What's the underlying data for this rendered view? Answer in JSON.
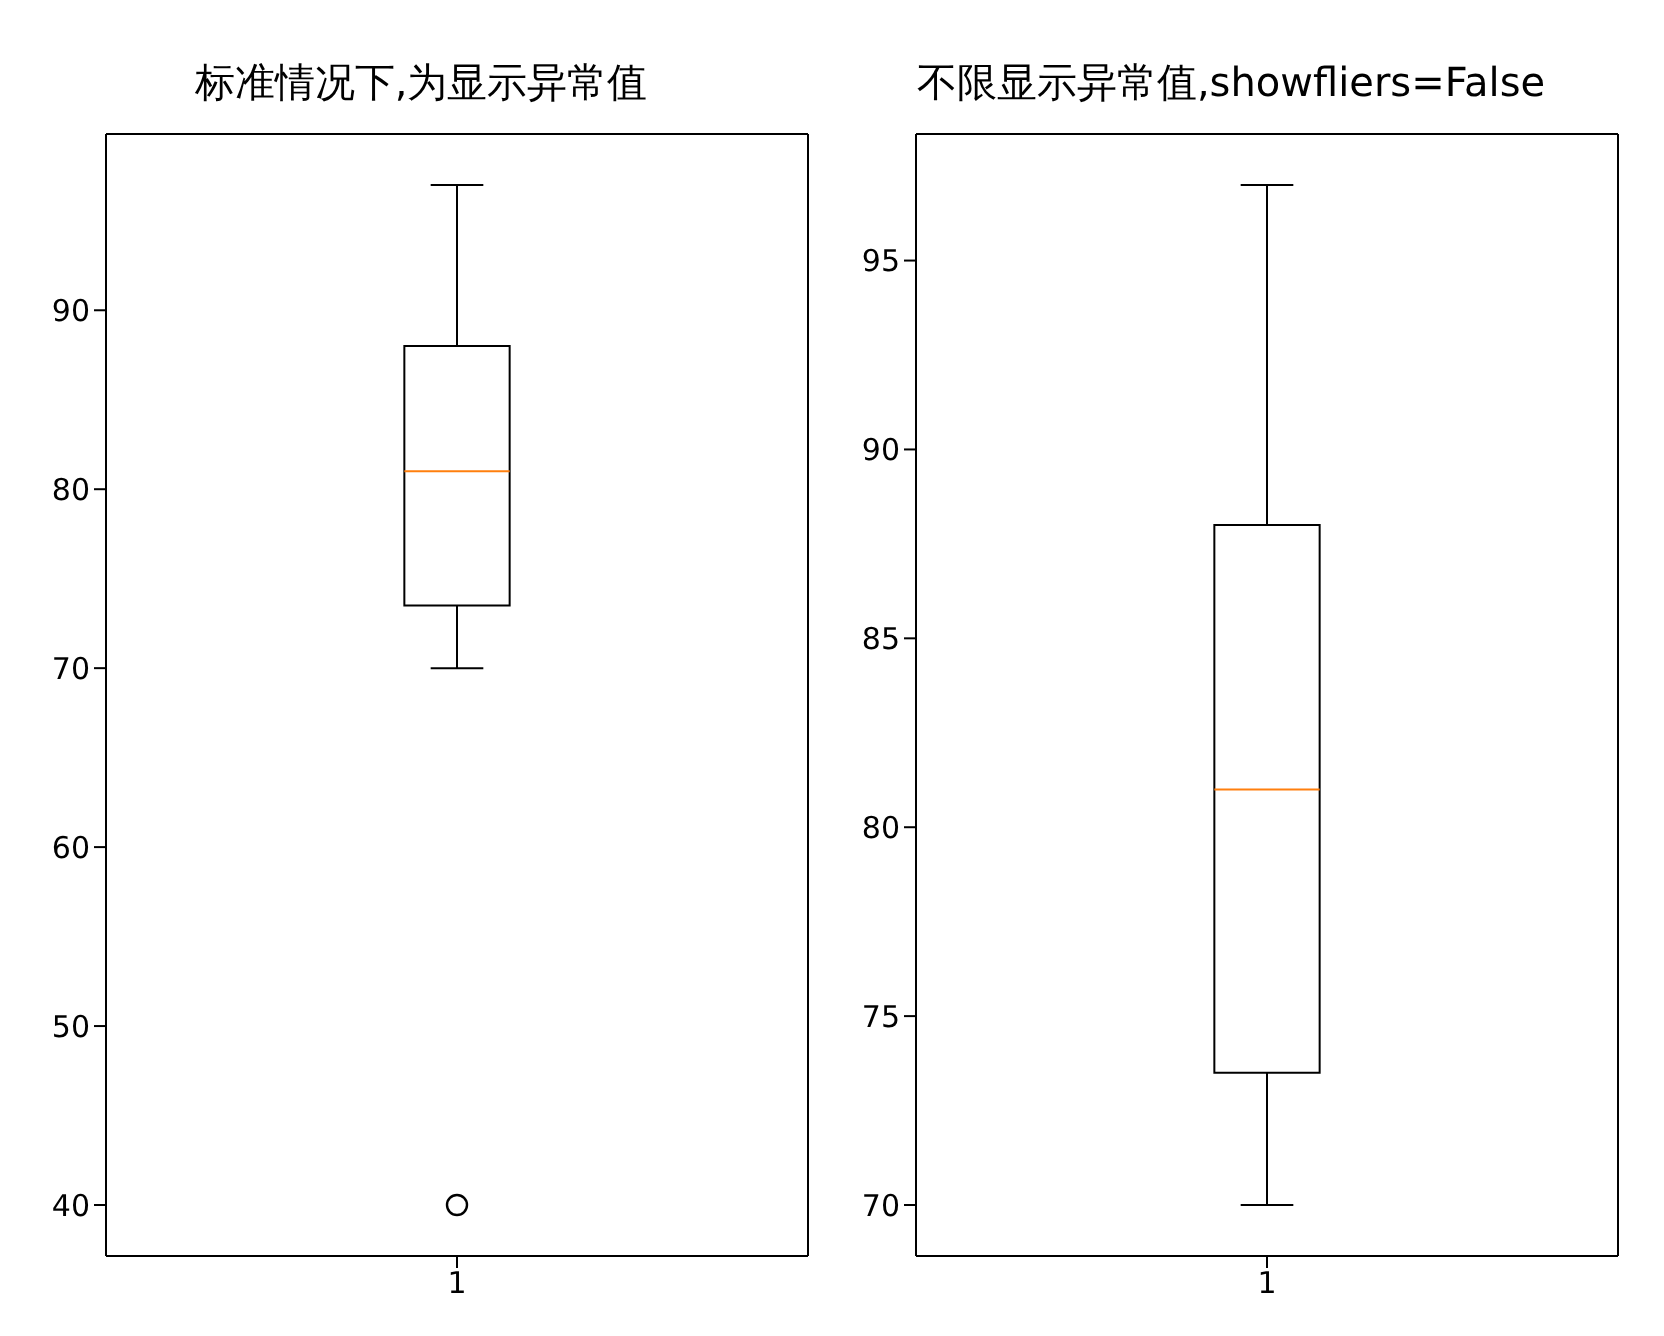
{
  "chart_data": [
    {
      "type": "box",
      "title": "标准情况下,为显示异常值",
      "categories": [
        "1"
      ],
      "color": "#000000",
      "boxes": [
        {
          "low": 70,
          "q1": 73.5,
          "median": 81,
          "q3": 88,
          "high": 97,
          "outliers": [
            40
          ]
        }
      ],
      "ylim": [
        37.15,
        99.85
      ],
      "yticks": [
        40,
        50,
        60,
        70,
        80,
        90
      ]
    },
    {
      "type": "box",
      "title": "不限显示异常值,showfliers=False",
      "categories": [
        "1"
      ],
      "color": "#000000",
      "boxes": [
        {
          "low": 70,
          "q1": 73.5,
          "median": 81,
          "q3": 88,
          "high": 97
        }
      ],
      "ylim": [
        68.65,
        98.35
      ],
      "yticks": [
        70,
        75,
        80,
        85,
        90,
        95
      ]
    }
  ]
}
